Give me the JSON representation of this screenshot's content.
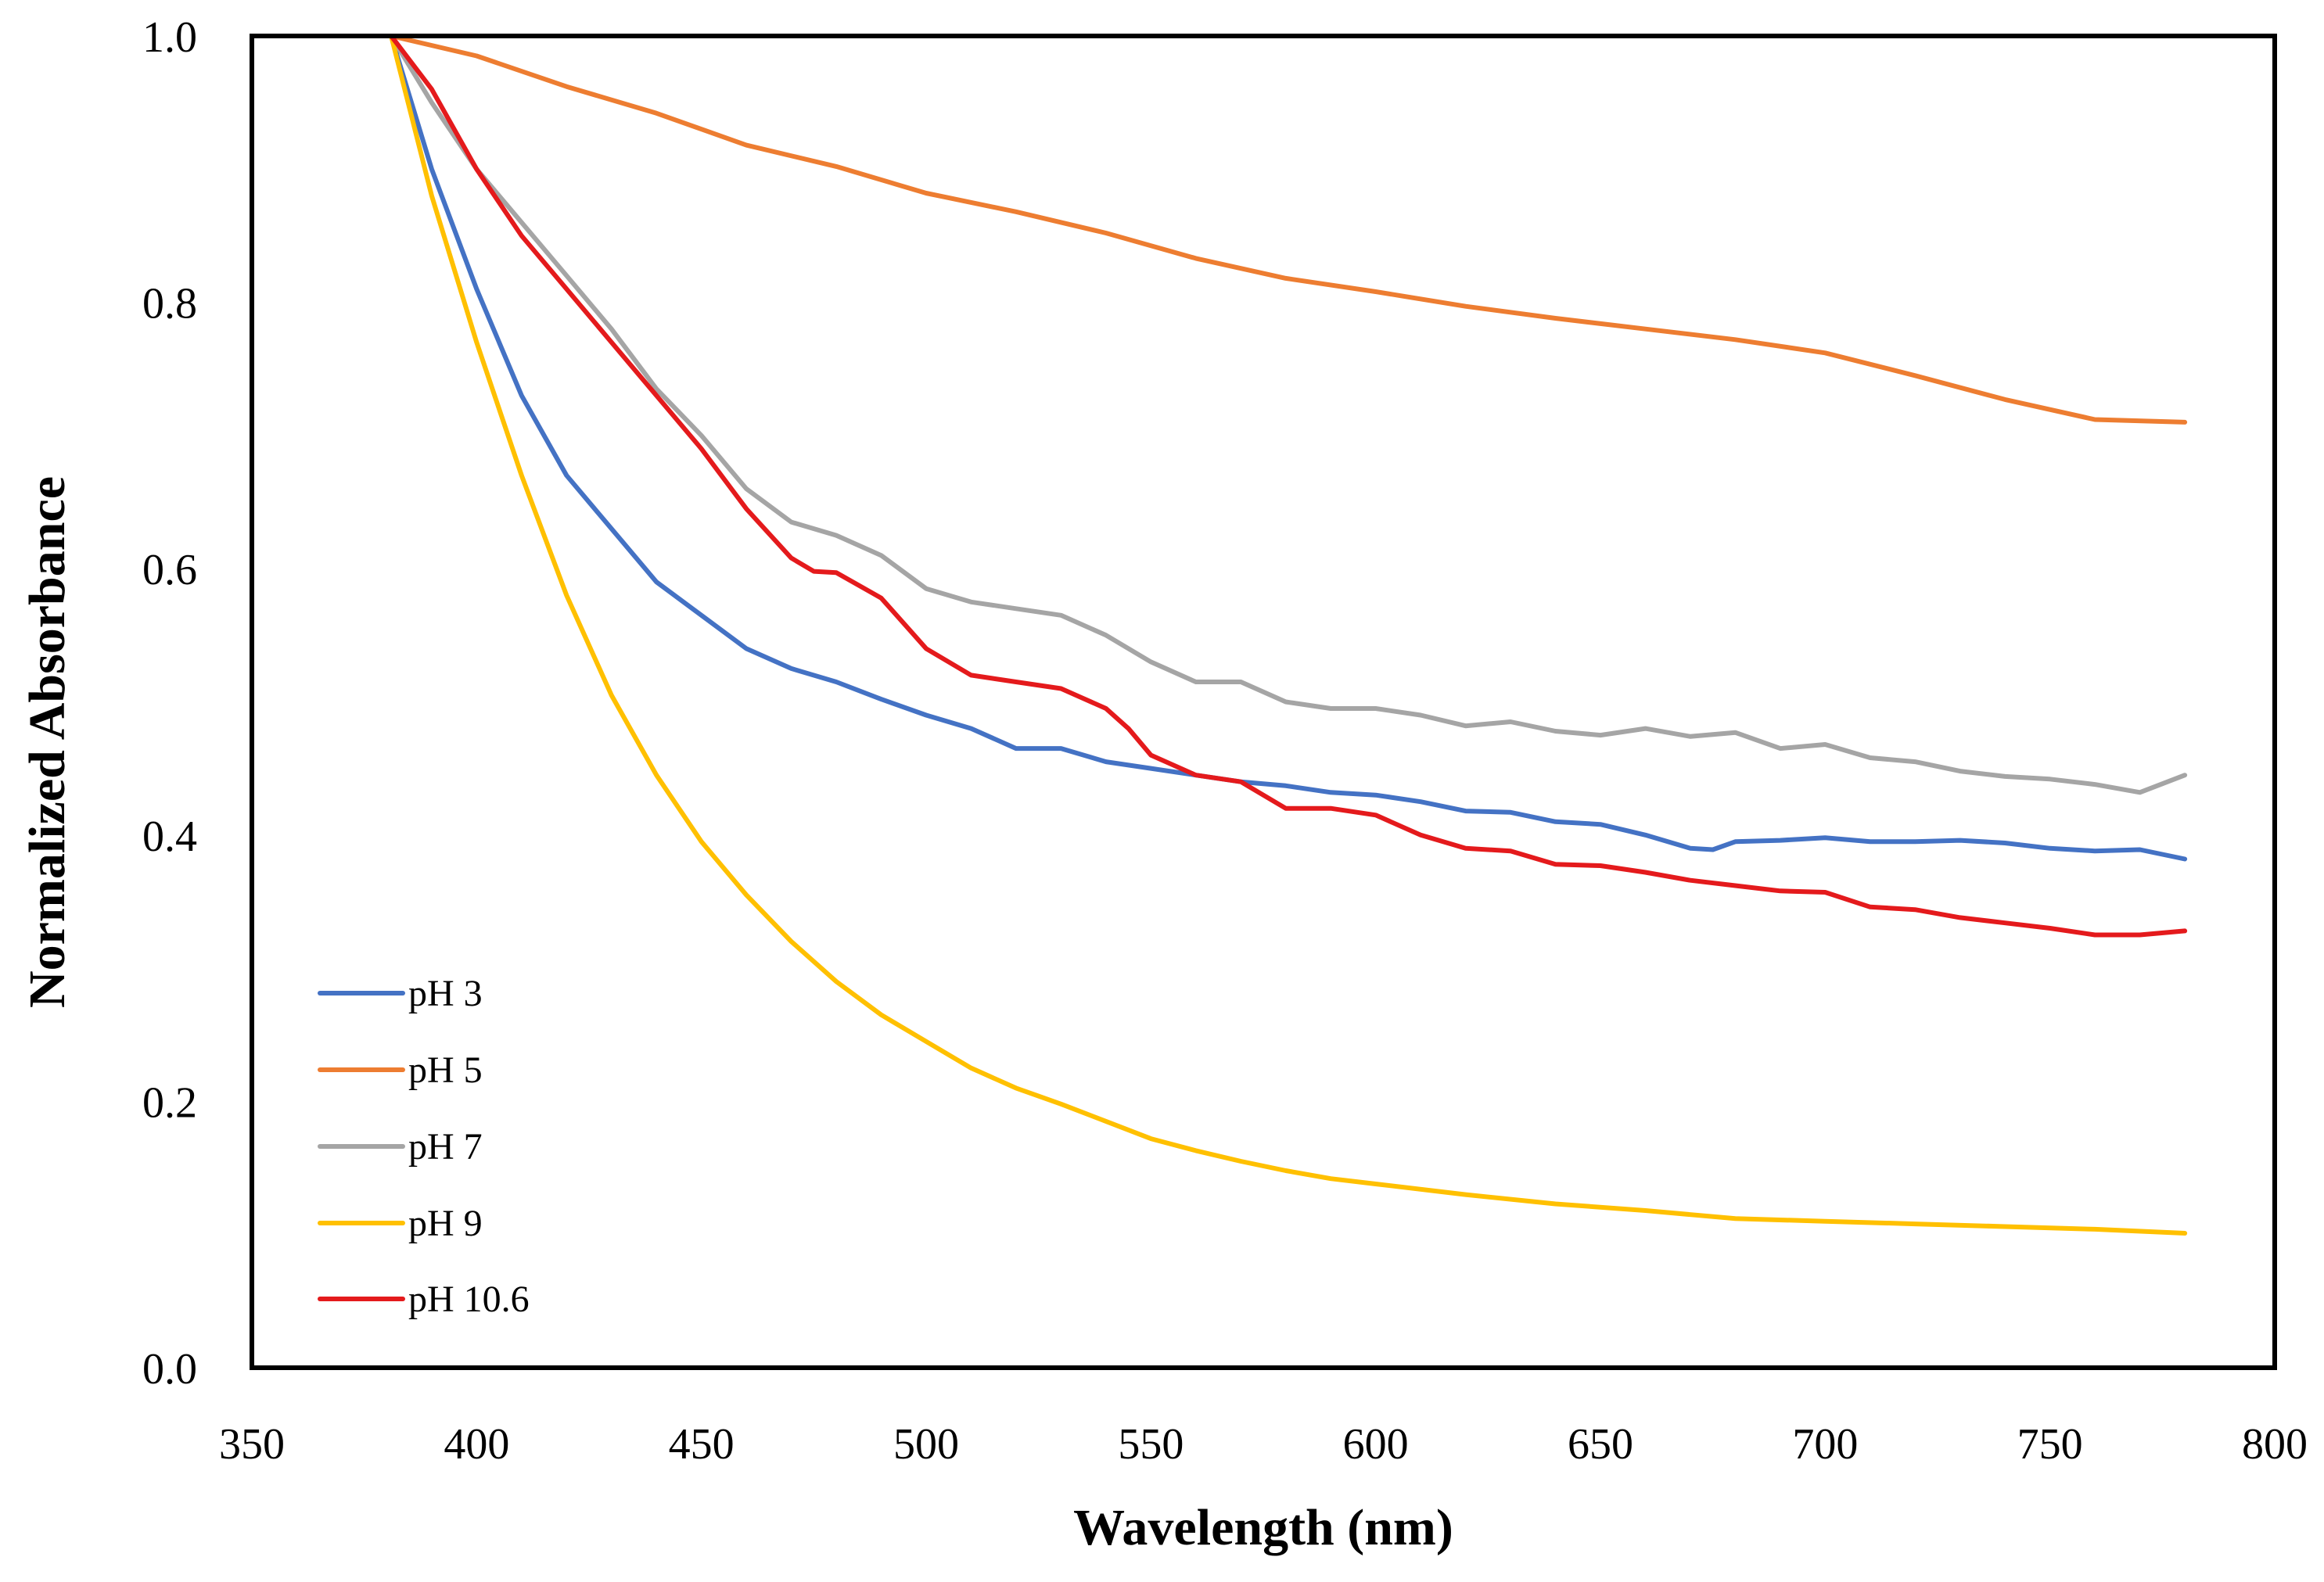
{
  "chart_data": {
    "type": "line",
    "title": "",
    "xlabel": "Wavelength (nm)",
    "ylabel": "Normalized Absorbance",
    "xlim": [
      350,
      800
    ],
    "ylim": [
      0.0,
      1.0
    ],
    "xticks": [
      350,
      400,
      450,
      500,
      550,
      600,
      650,
      700,
      750,
      800
    ],
    "xtick_labels": [
      "350",
      "400",
      "450",
      "500",
      "550",
      "600",
      "650",
      "700",
      "750",
      "800"
    ],
    "yticks": [
      0.0,
      0.2,
      0.4,
      0.6,
      0.8,
      1.0
    ],
    "ytick_labels": [
      "0.0",
      "0.2",
      "0.4",
      "0.6",
      "0.8",
      "1.0"
    ],
    "grid": false,
    "legend_position": "bottom-left",
    "series": [
      {
        "name": "pH 3",
        "color": "#4472C4",
        "x": [
          381,
          390,
          400,
          410,
          420,
          430,
          440,
          450,
          460,
          470,
          480,
          490,
          500,
          510,
          520,
          530,
          540,
          550,
          560,
          570,
          580,
          590,
          600,
          610,
          620,
          630,
          640,
          650,
          660,
          670,
          675,
          680,
          690,
          700,
          710,
          720,
          730,
          740,
          750,
          760,
          770,
          780
        ],
        "y": [
          1.0,
          0.9,
          0.81,
          0.73,
          0.67,
          0.63,
          0.59,
          0.565,
          0.54,
          0.525,
          0.515,
          0.502,
          0.49,
          0.48,
          0.465,
          0.465,
          0.455,
          0.45,
          0.445,
          0.44,
          0.437,
          0.432,
          0.43,
          0.425,
          0.418,
          0.417,
          0.41,
          0.408,
          0.4,
          0.39,
          0.389,
          0.395,
          0.396,
          0.398,
          0.395,
          0.395,
          0.396,
          0.394,
          0.39,
          0.388,
          0.389,
          0.382
        ]
      },
      {
        "name": "pH 5",
        "color": "#ED7D31",
        "x": [
          381,
          400,
          420,
          440,
          460,
          480,
          500,
          520,
          540,
          560,
          580,
          600,
          620,
          640,
          660,
          680,
          700,
          720,
          740,
          760,
          780
        ],
        "y": [
          1.0,
          0.985,
          0.962,
          0.942,
          0.918,
          0.902,
          0.882,
          0.868,
          0.852,
          0.833,
          0.818,
          0.808,
          0.797,
          0.788,
          0.78,
          0.772,
          0.762,
          0.745,
          0.727,
          0.712,
          0.71
        ]
      },
      {
        "name": "pH 7",
        "color": "#A5A5A5",
        "x": [
          381,
          390,
          400,
          410,
          420,
          430,
          440,
          450,
          460,
          470,
          480,
          490,
          500,
          510,
          520,
          530,
          540,
          550,
          560,
          570,
          580,
          590,
          600,
          610,
          620,
          630,
          640,
          650,
          660,
          670,
          680,
          690,
          700,
          710,
          720,
          730,
          740,
          750,
          760,
          770,
          780
        ],
        "y": [
          1.0,
          0.95,
          0.9,
          0.86,
          0.82,
          0.78,
          0.735,
          0.7,
          0.66,
          0.635,
          0.625,
          0.61,
          0.585,
          0.575,
          0.57,
          0.565,
          0.55,
          0.53,
          0.515,
          0.515,
          0.5,
          0.495,
          0.495,
          0.49,
          0.482,
          0.485,
          0.478,
          0.475,
          0.48,
          0.474,
          0.477,
          0.465,
          0.468,
          0.458,
          0.455,
          0.448,
          0.444,
          0.442,
          0.438,
          0.432,
          0.445
        ]
      },
      {
        "name": "pH 9",
        "color": "#FFC000",
        "x": [
          381,
          390,
          400,
          410,
          420,
          430,
          440,
          450,
          460,
          470,
          480,
          490,
          500,
          510,
          520,
          530,
          540,
          550,
          560,
          570,
          580,
          590,
          600,
          620,
          640,
          660,
          680,
          700,
          720,
          740,
          760,
          780
        ],
        "y": [
          1.0,
          0.88,
          0.77,
          0.67,
          0.58,
          0.505,
          0.445,
          0.395,
          0.355,
          0.32,
          0.29,
          0.265,
          0.245,
          0.225,
          0.21,
          0.198,
          0.185,
          0.172,
          0.163,
          0.155,
          0.148,
          0.142,
          0.138,
          0.13,
          0.123,
          0.118,
          0.112,
          0.11,
          0.108,
          0.106,
          0.104,
          0.101
        ]
      },
      {
        "name": "pH 10.6",
        "color": "#E41A1C",
        "x": [
          381,
          390,
          400,
          410,
          420,
          430,
          440,
          450,
          460,
          470,
          475,
          480,
          490,
          500,
          510,
          520,
          530,
          540,
          545,
          550,
          560,
          570,
          580,
          590,
          600,
          610,
          620,
          630,
          640,
          650,
          660,
          670,
          680,
          690,
          700,
          710,
          720,
          730,
          740,
          750,
          760,
          770,
          780
        ],
        "y": [
          1.0,
          0.96,
          0.9,
          0.85,
          0.81,
          0.77,
          0.73,
          0.69,
          0.645,
          0.608,
          0.598,
          0.597,
          0.578,
          0.54,
          0.52,
          0.515,
          0.51,
          0.495,
          0.48,
          0.46,
          0.445,
          0.44,
          0.42,
          0.42,
          0.415,
          0.4,
          0.39,
          0.388,
          0.378,
          0.377,
          0.372,
          0.366,
          0.362,
          0.358,
          0.357,
          0.346,
          0.344,
          0.338,
          0.334,
          0.33,
          0.325,
          0.325,
          0.328
        ]
      }
    ]
  }
}
